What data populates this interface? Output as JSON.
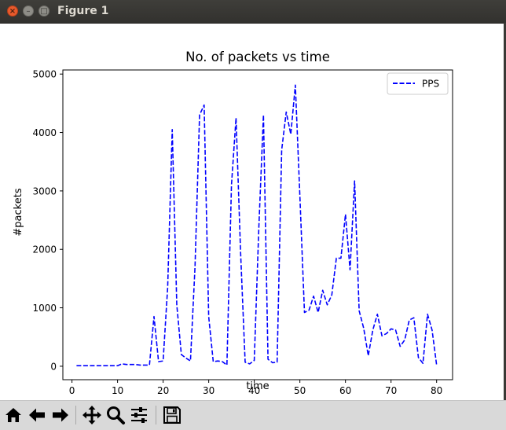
{
  "window": {
    "title": "Figure 1",
    "close_glyph": "×",
    "min_glyph": "–",
    "max_glyph": "□"
  },
  "toolbar": {
    "icons": [
      "home-icon",
      "back-arrow-icon",
      "forward-arrow-icon",
      "pan-icon",
      "zoom-icon",
      "subplots-icon",
      "save-icon"
    ]
  },
  "chart_data": {
    "type": "line",
    "title": "No. of packets vs time",
    "xlabel": "time",
    "ylabel": "#packets",
    "xlim": [
      -2,
      83.5
    ],
    "ylim": [
      -230,
      5070
    ],
    "xticks": [
      0,
      10,
      20,
      30,
      40,
      50,
      60,
      70,
      80
    ],
    "yticks": [
      0,
      1000,
      2000,
      3000,
      4000,
      5000
    ],
    "legend_position": "upper right",
    "grid": false,
    "series": [
      {
        "name": "PPS",
        "color": "#0000ff",
        "linestyle": "dashed",
        "x": [
          1,
          2,
          3,
          4,
          5,
          6,
          7,
          8,
          9,
          10,
          11,
          12,
          13,
          14,
          15,
          16,
          17,
          18,
          19,
          20,
          21,
          22,
          23,
          24,
          25,
          26,
          27,
          28,
          29,
          30,
          31,
          32,
          33,
          34,
          35,
          36,
          37,
          38,
          39,
          40,
          41,
          42,
          43,
          44,
          45,
          46,
          47,
          48,
          49,
          50,
          51,
          52,
          53,
          54,
          55,
          56,
          57,
          58,
          59,
          60,
          61,
          62,
          63,
          64,
          65,
          66,
          67,
          68,
          69,
          70,
          71,
          72,
          73,
          74,
          75,
          76,
          77,
          78,
          79,
          80
        ],
        "y": [
          10,
          10,
          10,
          10,
          10,
          10,
          10,
          10,
          10,
          10,
          40,
          30,
          30,
          30,
          20,
          20,
          20,
          850,
          80,
          90,
          1350,
          4050,
          1050,
          200,
          140,
          90,
          1700,
          4300,
          4470,
          850,
          80,
          90,
          80,
          20,
          3100,
          4250,
          1950,
          70,
          40,
          100,
          2400,
          4300,
          120,
          60,
          70,
          3700,
          4350,
          3970,
          4810,
          2900,
          920,
          960,
          1200,
          920,
          1300,
          1050,
          1220,
          1850,
          1850,
          2600,
          1650,
          3170,
          950,
          650,
          180,
          620,
          890,
          520,
          560,
          640,
          620,
          340,
          450,
          790,
          830,
          150,
          50,
          890,
          620,
          20
        ]
      }
    ]
  }
}
